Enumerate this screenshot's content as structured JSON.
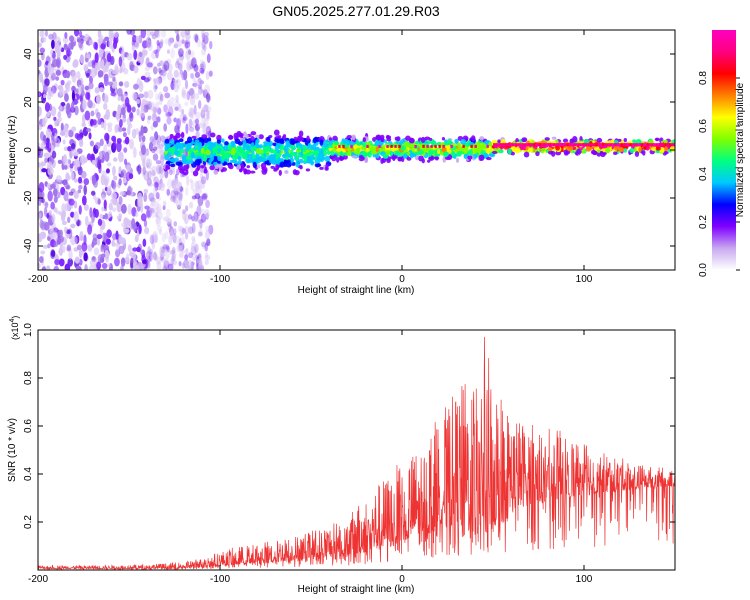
{
  "title": "GN05.2025.277.01.29.R03",
  "colorbar": {
    "label": "Normalized spectral amplitude",
    "range": [
      0,
      1
    ],
    "ticks": [
      "0.0",
      "0.2",
      "0.4",
      "0.6",
      "0.8"
    ],
    "colors": [
      "#ffffff",
      "#c8a8f0",
      "#8000ff",
      "#0000ff",
      "#00c8ff",
      "#00ff80",
      "#80ff00",
      "#ffff00",
      "#ff8000",
      "#ff0000",
      "#ff0080",
      "#ff00c0"
    ]
  },
  "chart_data": [
    {
      "type": "heatmap",
      "title": "GN05.2025.277.01.29.R03",
      "xlabel": "Height of straight line (km)",
      "ylabel": "Frequency (Hz)",
      "xlim": [
        -200,
        150
      ],
      "ylim": [
        -50,
        50
      ],
      "xticks": [
        "-200",
        "-100",
        "0",
        "100"
      ],
      "yticks": [
        "-40",
        "-20",
        "0",
        "20",
        "40"
      ],
      "regions": [
        {
          "x": [
            -200,
            -115
          ],
          "freq_span": [
            -50,
            50
          ],
          "amplitude": 0.15,
          "description_of_pattern": "scattered"
        },
        {
          "x": [
            -130,
            -40
          ],
          "freq_span": [
            -10,
            8
          ],
          "amplitude": 0.3
        },
        {
          "x": [
            -40,
            50
          ],
          "freq_span": [
            -5,
            6
          ],
          "amplitude": 0.5
        },
        {
          "x": [
            50,
            150
          ],
          "freq_span": [
            -2,
            5
          ],
          "amplitude": 0.9
        }
      ]
    },
    {
      "type": "line",
      "xlabel": "Height of straight line (km)",
      "ylabel": "SNR (10 * v/v)",
      "scale_label": "(x10",
      "scale_exp": "4",
      "scale_close": ")",
      "xlim": [
        -200,
        150
      ],
      "ylim": [
        0,
        1.0
      ],
      "xticks": [
        "-200",
        "-100",
        "0",
        "100"
      ],
      "yticks": [
        "0.2",
        "0.4",
        "0.6",
        "0.8",
        "1.0"
      ],
      "series": [
        {
          "name": "SNR",
          "color": "#ee3333",
          "envelope": {
            "x": [
              -200,
              -150,
              -125,
              -110,
              -95,
              -75,
              -60,
              -45,
              -30,
              -15,
              -5,
              0,
              10,
              20,
              30,
              40,
              45,
              50,
              60,
              75,
              90,
              110,
              130,
              150
            ],
            "base": [
              0.005,
              0.005,
              0.005,
              0.01,
              0.02,
              0.03,
              0.04,
              0.05,
              0.06,
              0.08,
              0.1,
              0.12,
              0.15,
              0.18,
              0.18,
              0.15,
              0.15,
              0.18,
              0.25,
              0.28,
              0.3,
              0.32,
              0.34,
              0.35
            ],
            "peak": [
              0.02,
              0.02,
              0.03,
              0.05,
              0.09,
              0.12,
              0.14,
              0.18,
              0.22,
              0.35,
              0.42,
              0.46,
              0.52,
              0.65,
              0.75,
              0.85,
              1.0,
              0.82,
              0.65,
              0.6,
              0.58,
              0.5,
              0.44,
              0.42
            ]
          }
        }
      ]
    }
  ]
}
